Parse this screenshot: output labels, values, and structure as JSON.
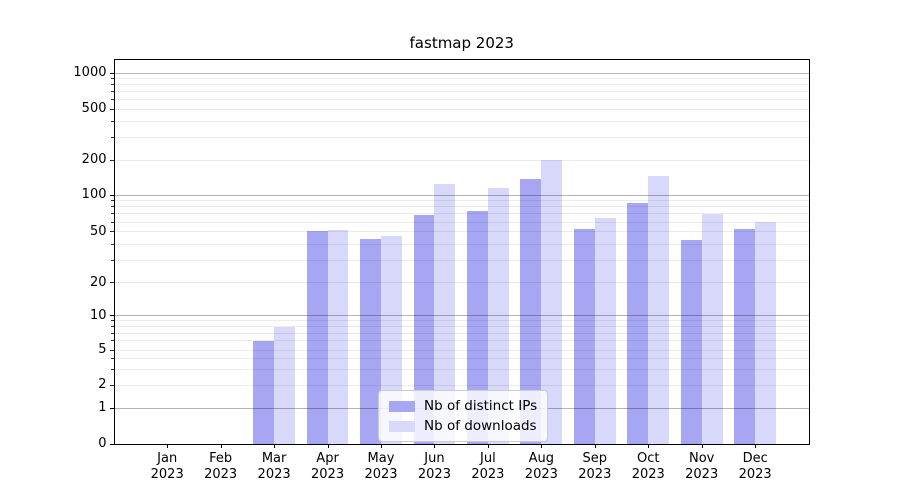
{
  "chart_data": {
    "type": "bar",
    "title": "fastmap 2023",
    "year_label": "2023",
    "categories": [
      "Jan",
      "Feb",
      "Mar",
      "Apr",
      "May",
      "Jun",
      "Jul",
      "Aug",
      "Sep",
      "Oct",
      "Nov",
      "Dec"
    ],
    "series": [
      {
        "name": "Nb of distinct IPs",
        "color": "#a6a6f3",
        "values": [
          0,
          0,
          6,
          51,
          44,
          68,
          74,
          138,
          53,
          86,
          43,
          53
        ]
      },
      {
        "name": "Nb of downloads",
        "color": "#d8d8fb",
        "values": [
          0,
          0,
          8,
          52,
          46,
          124,
          115,
          200,
          65,
          145,
          70,
          60
        ]
      }
    ],
    "y_axis": {
      "scale": "symlog",
      "tick_values": [
        0,
        1,
        2,
        5,
        10,
        20,
        50,
        100,
        200,
        500,
        1000
      ],
      "tick_labels": [
        "0",
        "1",
        "2",
        "5",
        "10",
        "20",
        "50",
        "100",
        "200",
        "500",
        "1000"
      ],
      "major_gridlines_at": [
        1,
        10,
        100,
        1000
      ]
    },
    "x_axis": {
      "tick_label_style": "month over year, two lines"
    },
    "legend": {
      "position": "lower-center",
      "entries": [
        "Nb of distinct IPs",
        "Nb of downloads"
      ]
    },
    "colors": {
      "bar_distinct_ips": "#a6a6f3",
      "bar_downloads": "#d8d8fb",
      "grid_minor": "#ededed",
      "grid_major": "#b8b8b8",
      "axis": "#000000",
      "legend_border": "#cccccc"
    }
  }
}
